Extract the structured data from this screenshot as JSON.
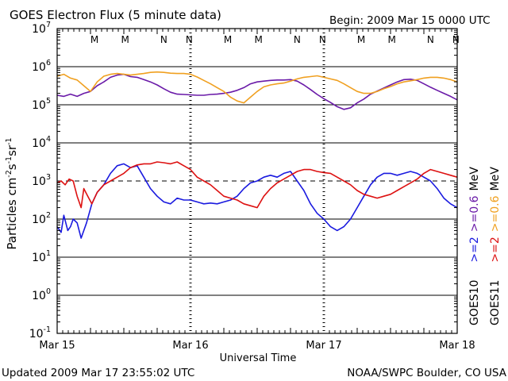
{
  "chart_data": {
    "type": "line",
    "title": "GOES Electron Flux (5 minute data)",
    "begin_label": "Begin: 2009 Mar 15 0000 UTC",
    "ylabel": "Particles cm-2s-1sr-1",
    "ylabel_parts": {
      "main": "Particles cm",
      "e1": "-2",
      "s": "s",
      "e2": "-1",
      "sr": "sr",
      "e3": "-1"
    },
    "xlabel": "Universal Time",
    "x_unit": "days since 2009 Mar 15 0000 UTC",
    "xlim": [
      0,
      3
    ],
    "y_scale": "log",
    "ylim_exp": [
      -1,
      7
    ],
    "y_ticks": [
      {
        "base": "10",
        "exp": "7"
      },
      {
        "base": "10",
        "exp": "6"
      },
      {
        "base": "10",
        "exp": "5"
      },
      {
        "base": "10",
        "exp": "4"
      },
      {
        "base": "10",
        "exp": "3"
      },
      {
        "base": "10",
        "exp": "2"
      },
      {
        "base": "10",
        "exp": "1"
      },
      {
        "base": "10",
        "exp": "0"
      },
      {
        "base": "10",
        "exp": "-1"
      }
    ],
    "x_ticks": [
      {
        "value": 0,
        "label": "Mar 15"
      },
      {
        "value": 1,
        "label": "Mar 16"
      },
      {
        "value": 2,
        "label": "Mar 17"
      },
      {
        "value": 3,
        "label": "Mar 18"
      }
    ],
    "threshold_exp": 3,
    "marker_colors": {
      "M": "#1a1adf",
      "N": "#1a1adf",
      "Mr": "#dd1111",
      "Nr": "#dd1111"
    },
    "markers": [
      {
        "x": 0.28,
        "label": "M",
        "color": "#1a1adf"
      },
      {
        "x": 0.51,
        "label": "M",
        "color": "#dd1111"
      },
      {
        "x": 0.8,
        "label": "N",
        "color": "#1a1adf"
      },
      {
        "x": 0.99,
        "label": "N",
        "color": "#dd1111"
      },
      {
        "x": 1.28,
        "label": "M",
        "color": "#1a1adf"
      },
      {
        "x": 1.51,
        "label": "M",
        "color": "#dd1111"
      },
      {
        "x": 1.8,
        "label": "N",
        "color": "#1a1adf"
      },
      {
        "x": 1.99,
        "label": "N",
        "color": "#dd1111"
      },
      {
        "x": 2.28,
        "label": "M",
        "color": "#1a1adf"
      },
      {
        "x": 2.51,
        "label": "M",
        "color": "#dd1111"
      },
      {
        "x": 2.8,
        "label": "N",
        "color": "#1a1adf"
      },
      {
        "x": 2.99,
        "label": "N",
        "color": "#dd1111"
      }
    ],
    "legend": {
      "goes10_label": "GOES10",
      "goes11_label": "GOES11",
      "entries": [
        {
          "text": ">=2",
          "color": "#1a1adf"
        },
        {
          "text": ">=0.6",
          "color": "#6a1aa8"
        },
        {
          "text": "MeV",
          "color": "#000000"
        },
        {
          "text": ">=2",
          "color": "#dd1111"
        },
        {
          "text": ">=0.6",
          "color": "#f0a020"
        },
        {
          "text": "MeV",
          "color": "#000000"
        }
      ]
    },
    "series": [
      {
        "name": "GOES10 >=2 MeV",
        "color": "#1a1adf",
        "x": [
          0,
          0.03,
          0.05,
          0.08,
          0.1,
          0.12,
          0.15,
          0.18,
          0.22,
          0.26,
          0.3,
          0.35,
          0.4,
          0.45,
          0.5,
          0.55,
          0.6,
          0.65,
          0.7,
          0.75,
          0.8,
          0.85,
          0.9,
          0.95,
          1.0,
          1.05,
          1.1,
          1.15,
          1.2,
          1.25,
          1.3,
          1.35,
          1.4,
          1.45,
          1.5,
          1.55,
          1.6,
          1.65,
          1.7,
          1.75,
          1.8,
          1.85,
          1.9,
          1.95,
          2.0,
          2.05,
          2.1,
          2.15,
          2.2,
          2.25,
          2.3,
          2.35,
          2.4,
          2.45,
          2.5,
          2.55,
          2.6,
          2.65,
          2.7,
          2.75,
          2.8,
          2.85,
          2.9,
          2.95,
          3.0
        ],
        "exp": [
          1.8,
          1.65,
          2.1,
          1.7,
          1.8,
          2.0,
          1.9,
          1.5,
          1.9,
          2.4,
          2.7,
          2.9,
          3.2,
          3.4,
          3.45,
          3.35,
          3.4,
          3.1,
          2.8,
          2.6,
          2.45,
          2.4,
          2.55,
          2.5,
          2.5,
          2.45,
          2.4,
          2.42,
          2.4,
          2.45,
          2.5,
          2.6,
          2.8,
          2.95,
          3.0,
          3.1,
          3.15,
          3.1,
          3.2,
          3.25,
          3.0,
          2.75,
          2.4,
          2.15,
          2.0,
          1.8,
          1.7,
          1.8,
          2.0,
          2.3,
          2.6,
          2.9,
          3.1,
          3.2,
          3.2,
          3.15,
          3.2,
          3.25,
          3.2,
          3.1,
          3.0,
          2.8,
          2.55,
          2.4,
          2.3
        ]
      },
      {
        "name": "GOES10 >=0.6 MeV",
        "color": "#6a1aa8",
        "x": [
          0,
          0.05,
          0.1,
          0.15,
          0.2,
          0.25,
          0.3,
          0.35,
          0.4,
          0.45,
          0.5,
          0.55,
          0.6,
          0.65,
          0.7,
          0.75,
          0.8,
          0.85,
          0.9,
          0.95,
          1.0,
          1.05,
          1.1,
          1.15,
          1.2,
          1.25,
          1.3,
          1.35,
          1.4,
          1.45,
          1.5,
          1.55,
          1.6,
          1.65,
          1.7,
          1.75,
          1.8,
          1.85,
          1.9,
          1.95,
          2.0,
          2.05,
          2.1,
          2.15,
          2.2,
          2.25,
          2.3,
          2.35,
          2.4,
          2.45,
          2.5,
          2.55,
          2.6,
          2.65,
          2.7,
          2.75,
          2.8,
          2.85,
          2.9,
          2.95,
          3.0
        ],
        "exp": [
          5.25,
          5.22,
          5.28,
          5.22,
          5.3,
          5.35,
          5.5,
          5.6,
          5.72,
          5.78,
          5.8,
          5.74,
          5.72,
          5.66,
          5.6,
          5.52,
          5.42,
          5.33,
          5.28,
          5.27,
          5.26,
          5.25,
          5.25,
          5.27,
          5.28,
          5.3,
          5.33,
          5.38,
          5.45,
          5.55,
          5.6,
          5.62,
          5.64,
          5.65,
          5.65,
          5.66,
          5.62,
          5.52,
          5.4,
          5.27,
          5.16,
          5.06,
          4.95,
          4.88,
          4.92,
          5.05,
          5.15,
          5.28,
          5.36,
          5.44,
          5.52,
          5.6,
          5.66,
          5.67,
          5.64,
          5.55,
          5.46,
          5.38,
          5.3,
          5.22,
          5.13
        ]
      },
      {
        "name": "GOES11 >=2 MeV",
        "color": "#dd1111",
        "x": [
          0,
          0.03,
          0.06,
          0.09,
          0.12,
          0.15,
          0.18,
          0.2,
          0.23,
          0.26,
          0.3,
          0.35,
          0.4,
          0.45,
          0.5,
          0.55,
          0.6,
          0.65,
          0.7,
          0.75,
          0.8,
          0.85,
          0.9,
          0.95,
          1.0,
          1.05,
          1.1,
          1.15,
          1.2,
          1.25,
          1.3,
          1.35,
          1.4,
          1.45,
          1.5,
          1.55,
          1.6,
          1.65,
          1.7,
          1.75,
          1.8,
          1.85,
          1.9,
          1.95,
          2.0,
          2.05,
          2.1,
          2.15,
          2.2,
          2.25,
          2.3,
          2.35,
          2.4,
          2.45,
          2.5,
          2.55,
          2.6,
          2.65,
          2.7,
          2.75,
          2.8,
          2.85,
          2.9,
          2.95,
          3.0
        ],
        "exp": [
          2.95,
          3.0,
          2.9,
          3.05,
          3.0,
          2.6,
          2.3,
          2.8,
          2.6,
          2.4,
          2.7,
          2.9,
          3.0,
          3.1,
          3.2,
          3.35,
          3.42,
          3.45,
          3.45,
          3.5,
          3.48,
          3.45,
          3.5,
          3.4,
          3.3,
          3.1,
          3.0,
          2.9,
          2.75,
          2.6,
          2.55,
          2.5,
          2.4,
          2.35,
          2.3,
          2.6,
          2.8,
          2.95,
          3.05,
          3.15,
          3.25,
          3.3,
          3.3,
          3.25,
          3.22,
          3.2,
          3.1,
          3.0,
          2.9,
          2.75,
          2.65,
          2.6,
          2.55,
          2.6,
          2.65,
          2.75,
          2.85,
          2.95,
          3.05,
          3.2,
          3.3,
          3.25,
          3.2,
          3.15,
          3.1
        ]
      },
      {
        "name": "GOES11 >=0.6 MeV",
        "color": "#f0a020",
        "x": [
          0,
          0.05,
          0.1,
          0.15,
          0.2,
          0.25,
          0.3,
          0.35,
          0.4,
          0.45,
          0.5,
          0.55,
          0.6,
          0.65,
          0.7,
          0.75,
          0.8,
          0.85,
          0.9,
          0.95,
          1.0,
          1.05,
          1.1,
          1.15,
          1.2,
          1.25,
          1.3,
          1.35,
          1.4,
          1.45,
          1.5,
          1.55,
          1.6,
          1.65,
          1.7,
          1.75,
          1.8,
          1.85,
          1.9,
          1.95,
          2.0,
          2.05,
          2.1,
          2.15,
          2.2,
          2.25,
          2.3,
          2.35,
          2.4,
          2.45,
          2.5,
          2.55,
          2.6,
          2.65,
          2.7,
          2.75,
          2.8,
          2.85,
          2.9,
          2.95,
          3.0
        ],
        "exp": [
          5.75,
          5.8,
          5.7,
          5.65,
          5.5,
          5.35,
          5.6,
          5.75,
          5.8,
          5.82,
          5.8,
          5.78,
          5.8,
          5.82,
          5.85,
          5.86,
          5.85,
          5.83,
          5.82,
          5.82,
          5.8,
          5.73,
          5.64,
          5.55,
          5.45,
          5.35,
          5.2,
          5.1,
          5.05,
          5.2,
          5.35,
          5.47,
          5.52,
          5.55,
          5.57,
          5.62,
          5.68,
          5.72,
          5.74,
          5.76,
          5.72,
          5.68,
          5.64,
          5.55,
          5.45,
          5.35,
          5.3,
          5.3,
          5.35,
          5.42,
          5.48,
          5.55,
          5.6,
          5.63,
          5.66,
          5.7,
          5.72,
          5.72,
          5.7,
          5.66,
          5.6
        ]
      }
    ]
  },
  "footer": {
    "updated": "Updated 2009 Mar 17 23:55:02 UTC",
    "source": "NOAA/SWPC Boulder, CO USA"
  }
}
